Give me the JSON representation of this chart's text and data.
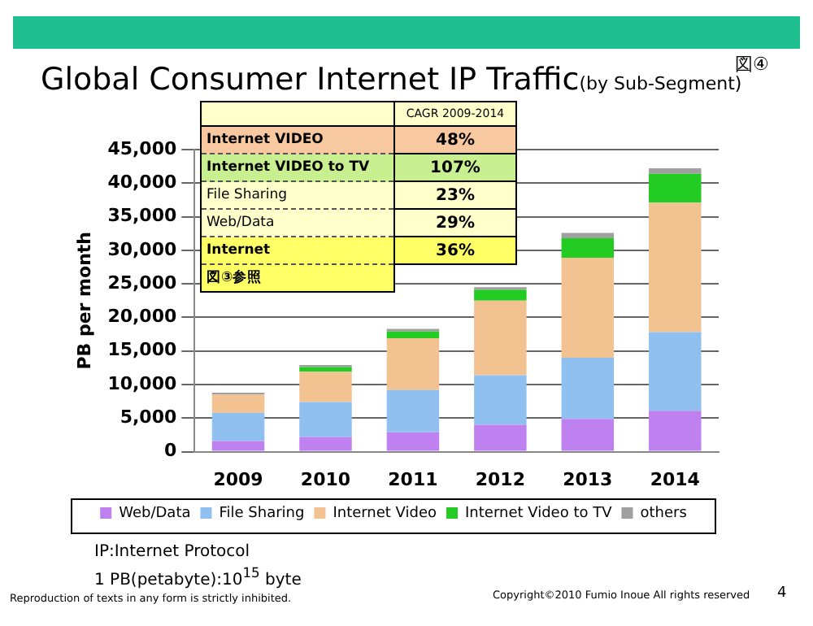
{
  "chart_data": [
    {
      "type": "bar",
      "title": "Global Consumer Internet IP Traffic",
      "subtitle": "(by Sub-Segment)",
      "ylabel": "PB per month",
      "stacked": true,
      "categories": [
        "2009",
        "2010",
        "2011",
        "2012",
        "2013",
        "2014"
      ],
      "series": [
        {
          "name": "Web/Data",
          "color": "#bf80f0",
          "values": [
            1600,
            2200,
            2900,
            4000,
            4900,
            6100
          ]
        },
        {
          "name": "File Sharing",
          "color": "#8fc0f0",
          "values": [
            4200,
            5200,
            6300,
            7400,
            9100,
            11700
          ]
        },
        {
          "name": "Internet Video",
          "color": "#f2c290",
          "values": [
            2700,
            4500,
            7700,
            11100,
            14900,
            19300
          ]
        },
        {
          "name": "Internet Video to TV",
          "color": "#22cc22",
          "values": [
            null,
            700,
            1000,
            1600,
            2900,
            4300
          ]
        },
        {
          "name": "others",
          "color": "#a0a0a0",
          "values": [
            300,
            300,
            400,
            400,
            800,
            800
          ]
        }
      ],
      "ylim": [
        0,
        45000
      ],
      "yticks": [
        {
          "value": 0,
          "label": "0"
        },
        {
          "value": 5000,
          "label": "5,000"
        },
        {
          "value": 10000,
          "label": "10,000"
        },
        {
          "value": 15000,
          "label": "15,000"
        },
        {
          "value": 20000,
          "label": "20,000"
        },
        {
          "value": 25000,
          "label": "25,000"
        },
        {
          "value": 30000,
          "label": "30,000"
        },
        {
          "value": 35000,
          "label": "35,000"
        },
        {
          "value": 40000,
          "label": "40,000"
        },
        {
          "value": 45000,
          "label": "45,000"
        }
      ],
      "grid": "y",
      "legend": "bottom",
      "annotations": [
        "図④",
        "IP:Internet Protocol",
        "1 PB(petabyte):10$^{15}$ byte",
        "Reproduction of texts in any form is strictly inhibited.",
        "Copyright©2010 Fumio Inoue All rights reserved",
        "4"
      ]
    },
    {
      "type": "other",
      "title": "CAGR 2009-2014",
      "categories": [
        "Internet VIDEO",
        "Internet VIDEO  to TV",
        "File Sharing",
        "Web/Data",
        "Internet",
        "図③参照"
      ],
      "values": [
        48,
        107,
        23,
        29,
        36,
        null
      ],
      "value_labels": [
        "48%",
        "107%",
        "23%",
        "29%",
        "36%",
        null
      ],
      "colors": [
        "#f8c8a0",
        "#c8f090",
        "#ffffcc",
        "#ffffcc",
        "#ffff66",
        "#ffff66"
      ]
    }
  ]
}
